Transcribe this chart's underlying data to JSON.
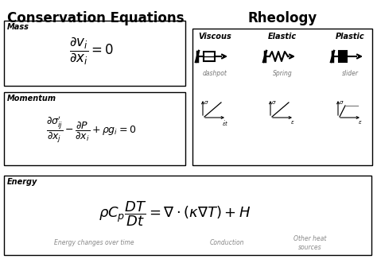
{
  "title": "Conservation Equations",
  "rheology_title": "Rheology",
  "bg_color": "#ffffff",
  "box_color": "#000000",
  "text_color": "#000000",
  "gray_color": "#888888",
  "mass_label": "Mass",
  "momentum_label": "Momentum",
  "energy_label": "Energy",
  "energy_sub1": "Energy changes over time",
  "energy_sub2": "Conduction",
  "energy_sub3": "Other heat\nsources",
  "viscous_label": "Viscous",
  "elastic_label": "Elastic",
  "plastic_label": "Plastic",
  "dashpot_label": "dashpot",
  "spring_label": "Spring",
  "slider_label": "slider"
}
